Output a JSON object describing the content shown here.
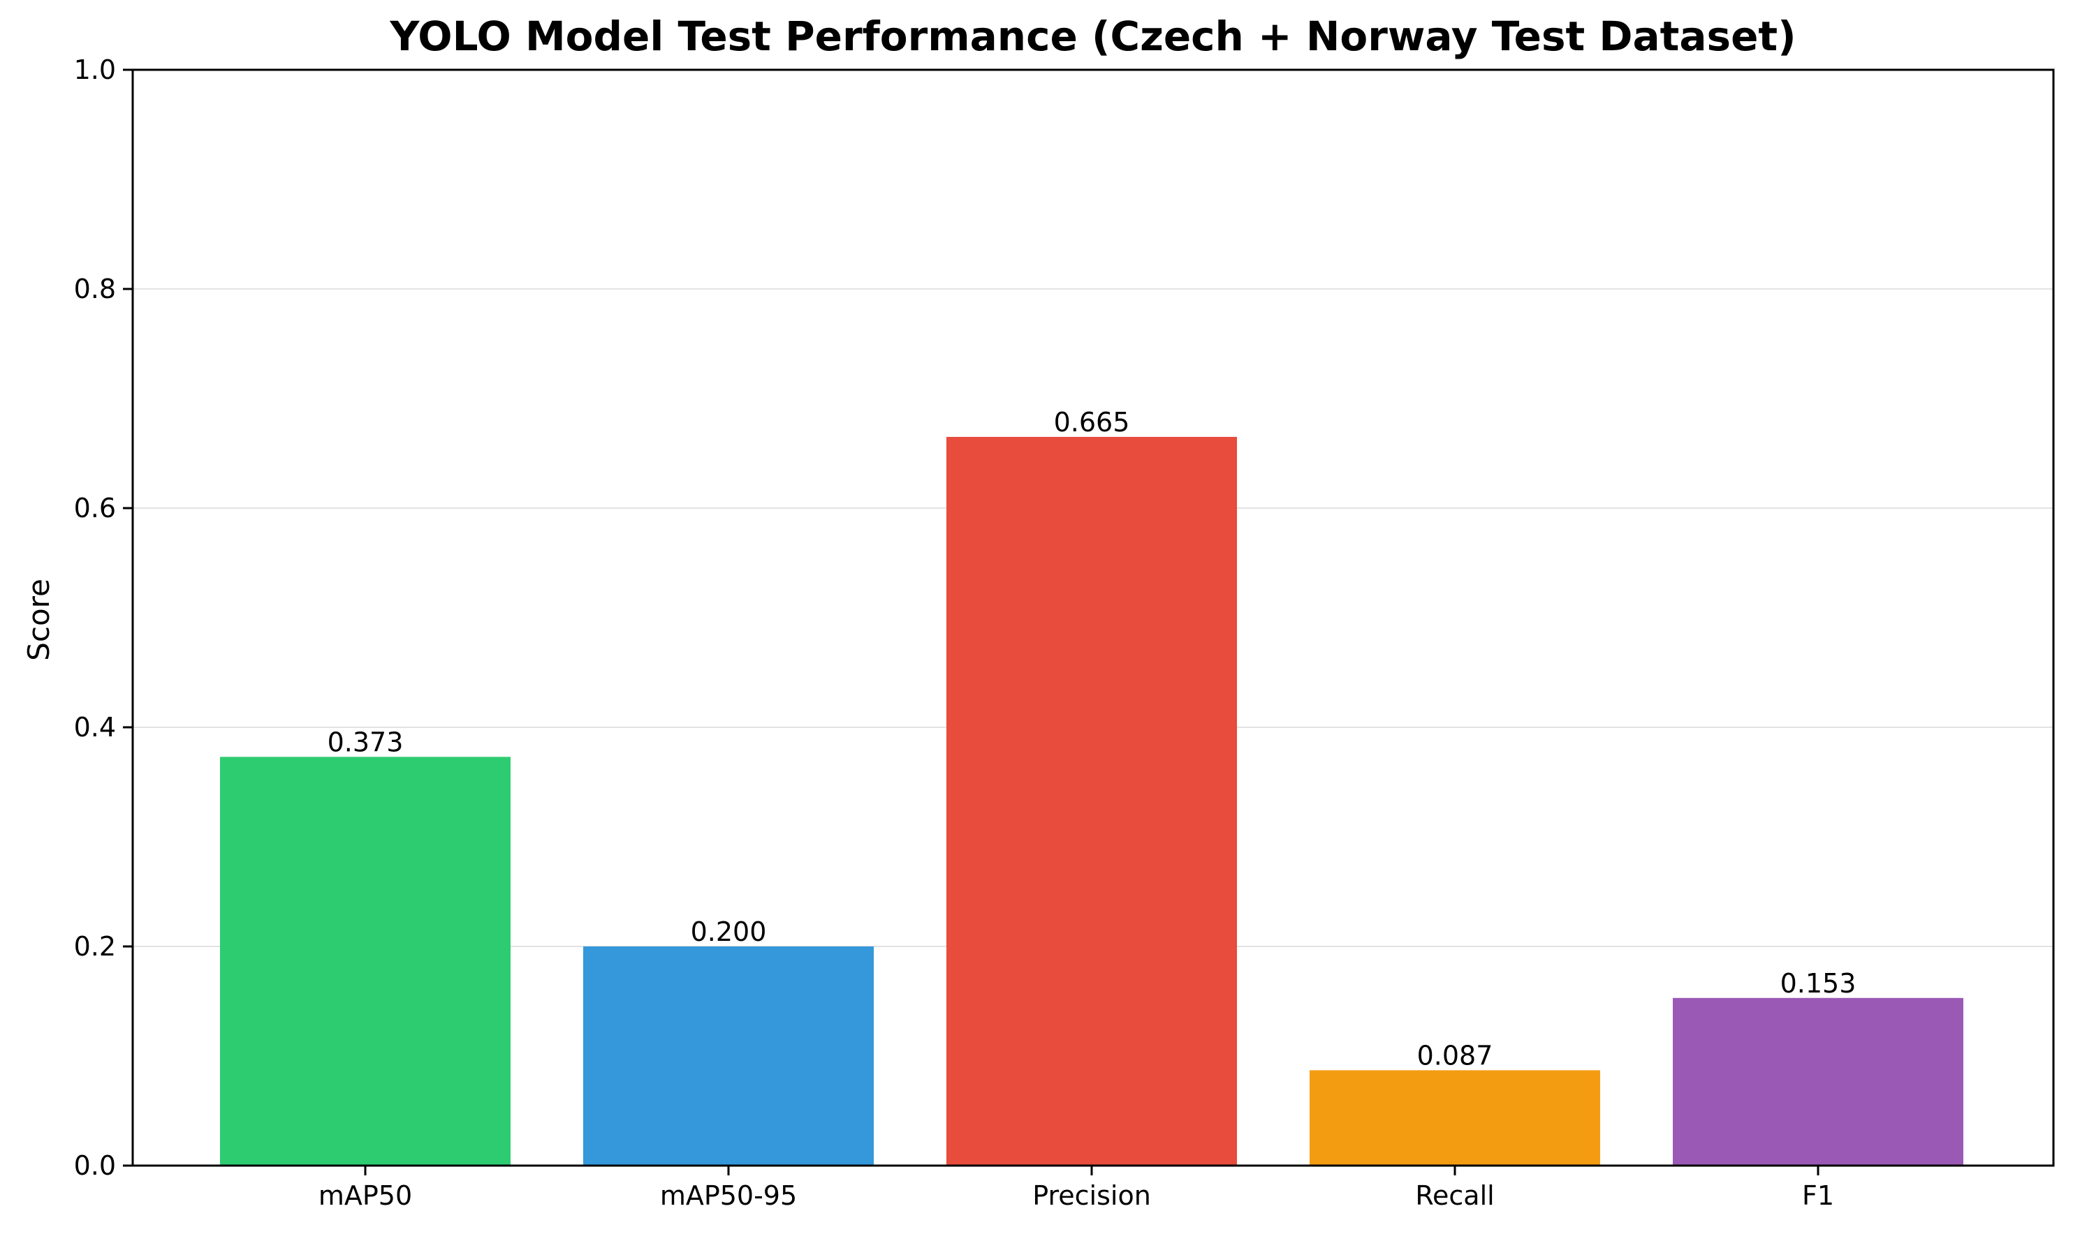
{
  "chart_data": {
    "type": "bar",
    "title": "YOLO Model Test Performance (Czech + Norway Test Dataset)",
    "xlabel": "",
    "ylabel": "Score",
    "categories": [
      "mAP50",
      "mAP50-95",
      "Precision",
      "Recall",
      "F1"
    ],
    "values": [
      0.373,
      0.2,
      0.665,
      0.087,
      0.153
    ],
    "value_labels": [
      "0.373",
      "0.200",
      "0.665",
      "0.087",
      "0.153"
    ],
    "colors": [
      "#2ecc71",
      "#3498db",
      "#e74c3c",
      "#f39c12",
      "#9b59b6"
    ],
    "ylim": [
      0,
      1.0
    ],
    "yticks": [
      0.0,
      0.2,
      0.4,
      0.6,
      0.8,
      1.0
    ],
    "ytick_labels": [
      "0.0",
      "0.2",
      "0.4",
      "0.6",
      "0.8",
      "1.0"
    ],
    "grid": "horizontal",
    "legend": "none"
  }
}
